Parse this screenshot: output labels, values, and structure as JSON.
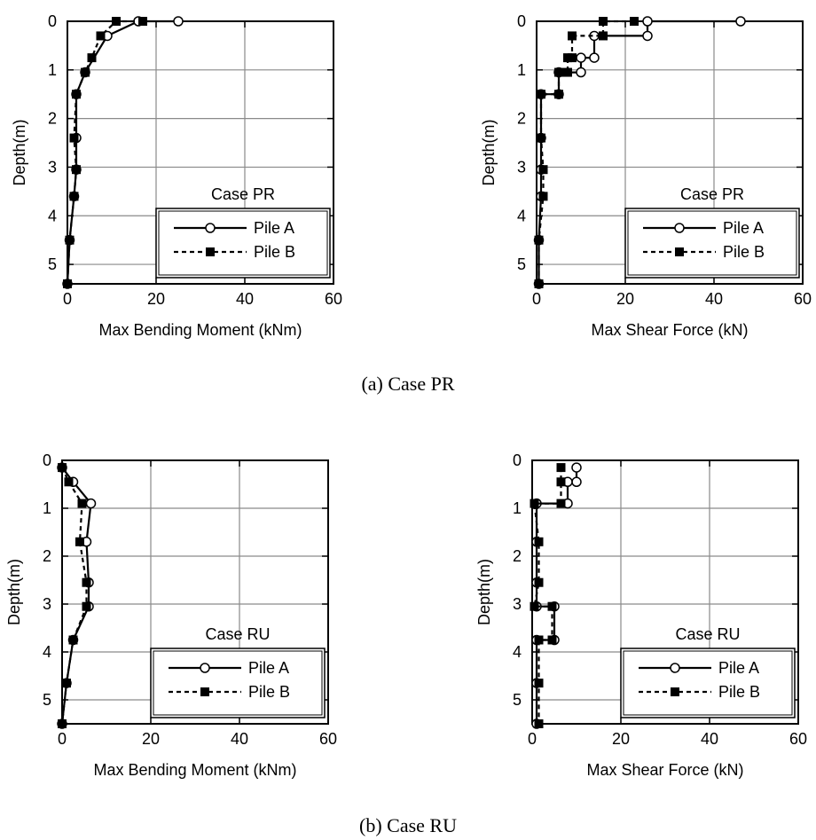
{
  "captions": {
    "a": "(a)  Case PR",
    "b": "(b)  Case RU"
  },
  "chart_data": [
    {
      "type": "line",
      "panel": "a-left",
      "title": "",
      "xlabel": "Max Bending Moment (kNm)",
      "ylabel": "Depth(m)",
      "xlim": [
        0,
        60
      ],
      "ylim": [
        0,
        5.4
      ],
      "y_inverted": true,
      "xticks": [
        0,
        20,
        40,
        60
      ],
      "yticks": [
        0,
        1,
        2,
        3,
        4,
        5
      ],
      "grid": true,
      "legend": {
        "title": "Case PR",
        "position": "bottom-right"
      },
      "series": [
        {
          "name": "Pile A",
          "line": "solid",
          "marker": "open-circle",
          "points": [
            [
              25,
              0.0
            ],
            [
              16,
              0.0
            ],
            [
              9,
              0.3
            ],
            [
              4,
              1.05
            ],
            [
              2,
              1.5
            ],
            [
              2,
              2.4
            ],
            [
              2,
              3.05
            ],
            [
              1.5,
              3.6
            ],
            [
              0.5,
              4.5
            ],
            [
              0,
              5.4
            ]
          ]
        },
        {
          "name": "Pile B",
          "line": "dashed",
          "marker": "filled-square",
          "points": [
            [
              17,
              0.0
            ],
            [
              11,
              0.0
            ],
            [
              7.5,
              0.3
            ],
            [
              5.5,
              0.75
            ],
            [
              4,
              1.05
            ],
            [
              2,
              1.5
            ],
            [
              1.5,
              2.4
            ],
            [
              2,
              3.05
            ],
            [
              1.5,
              3.6
            ],
            [
              0.5,
              4.5
            ],
            [
              0,
              5.4
            ]
          ]
        }
      ]
    },
    {
      "type": "line",
      "panel": "a-right",
      "title": "",
      "xlabel": "Max Shear Force (kN)",
      "ylabel": "Depth(m)",
      "xlim": [
        0,
        60
      ],
      "ylim": [
        0,
        5.4
      ],
      "y_inverted": true,
      "xticks": [
        0,
        20,
        40,
        60
      ],
      "yticks": [
        0,
        1,
        2,
        3,
        4,
        5
      ],
      "grid": true,
      "legend": {
        "title": "Case PR",
        "position": "bottom-right"
      },
      "series": [
        {
          "name": "Pile A",
          "line": "solid",
          "marker": "open-circle",
          "points": [
            [
              46,
              0.0
            ],
            [
              25,
              0.0
            ],
            [
              25,
              0.3
            ],
            [
              13,
              0.3
            ],
            [
              13,
              0.75
            ],
            [
              10,
              0.75
            ],
            [
              10,
              1.05
            ],
            [
              5,
              1.05
            ],
            [
              5,
              1.5
            ],
            [
              1,
              1.5
            ],
            [
              1,
              2.4
            ],
            [
              1,
              3.05
            ],
            [
              1,
              3.6
            ],
            [
              0.5,
              4.5
            ],
            [
              0.5,
              5.4
            ]
          ]
        },
        {
          "name": "Pile B",
          "line": "dashed",
          "marker": "filled-square",
          "points": [
            [
              22,
              0.0
            ],
            [
              15,
              0.0
            ],
            [
              15,
              0.3
            ],
            [
              8,
              0.3
            ],
            [
              8,
              0.75
            ],
            [
              7,
              0.75
            ],
            [
              7,
              1.05
            ],
            [
              5,
              1.05
            ],
            [
              5,
              1.5
            ],
            [
              1,
              1.5
            ],
            [
              1,
              2.4
            ],
            [
              1.5,
              3.05
            ],
            [
              1.5,
              3.6
            ],
            [
              0.5,
              4.5
            ],
            [
              0.5,
              5.4
            ]
          ]
        }
      ]
    },
    {
      "type": "line",
      "panel": "b-left",
      "title": "",
      "xlabel": "Max Bending Moment (kNm)",
      "ylabel": "Depth(m)",
      "xlim": [
        0,
        60
      ],
      "ylim": [
        0,
        5.5
      ],
      "y_inverted": true,
      "xticks": [
        0,
        20,
        40,
        60
      ],
      "yticks": [
        0,
        1,
        2,
        3,
        4,
        5
      ],
      "grid": true,
      "legend": {
        "title": "Case RU",
        "position": "bottom-right"
      },
      "series": [
        {
          "name": "Pile A",
          "line": "solid",
          "marker": "open-circle",
          "points": [
            [
              0,
              0.15
            ],
            [
              2.5,
              0.45
            ],
            [
              6.5,
              0.9
            ],
            [
              5.5,
              1.7
            ],
            [
              6,
              2.55
            ],
            [
              6,
              3.05
            ],
            [
              2.5,
              3.75
            ],
            [
              1,
              4.65
            ],
            [
              0,
              5.5
            ]
          ]
        },
        {
          "name": "Pile B",
          "line": "dashed",
          "marker": "filled-square",
          "points": [
            [
              0,
              0.15
            ],
            [
              1.5,
              0.45
            ],
            [
              4.5,
              0.9
            ],
            [
              4,
              1.7
            ],
            [
              5.5,
              2.55
            ],
            [
              5.5,
              3.05
            ],
            [
              2.5,
              3.75
            ],
            [
              1,
              4.65
            ],
            [
              0,
              5.5
            ]
          ]
        }
      ]
    },
    {
      "type": "line",
      "panel": "b-right",
      "title": "",
      "xlabel": "Max Shear Force (kN)",
      "ylabel": "Depth(m)",
      "xlim": [
        0,
        60
      ],
      "ylim": [
        0,
        5.5
      ],
      "y_inverted": true,
      "xticks": [
        0,
        20,
        40,
        60
      ],
      "yticks": [
        0,
        1,
        2,
        3,
        4,
        5
      ],
      "grid": true,
      "legend": {
        "title": "Case RU",
        "position": "bottom-right"
      },
      "series": [
        {
          "name": "Pile A",
          "line": "solid",
          "marker": "open-circle",
          "points": [
            [
              10,
              0.15
            ],
            [
              10,
              0.45
            ],
            [
              8,
              0.45
            ],
            [
              8,
              0.9
            ],
            [
              1,
              0.9
            ],
            [
              1,
              1.7
            ],
            [
              1,
              2.55
            ],
            [
              1,
              3.05
            ],
            [
              5,
              3.05
            ],
            [
              5,
              3.75
            ],
            [
              1,
              3.75
            ],
            [
              1,
              4.65
            ],
            [
              1,
              5.5
            ]
          ]
        },
        {
          "name": "Pile B",
          "line": "dashed",
          "marker": "filled-square",
          "points": [
            [
              6.5,
              0.15
            ],
            [
              6.5,
              0.45
            ],
            [
              6.5,
              0.9
            ],
            [
              0.5,
              0.9
            ],
            [
              1.5,
              1.7
            ],
            [
              1.5,
              2.55
            ],
            [
              0.5,
              3.05
            ],
            [
              4.5,
              3.05
            ],
            [
              4.5,
              3.75
            ],
            [
              1.5,
              3.75
            ],
            [
              1.5,
              4.65
            ],
            [
              1.5,
              5.5
            ]
          ]
        }
      ]
    }
  ]
}
